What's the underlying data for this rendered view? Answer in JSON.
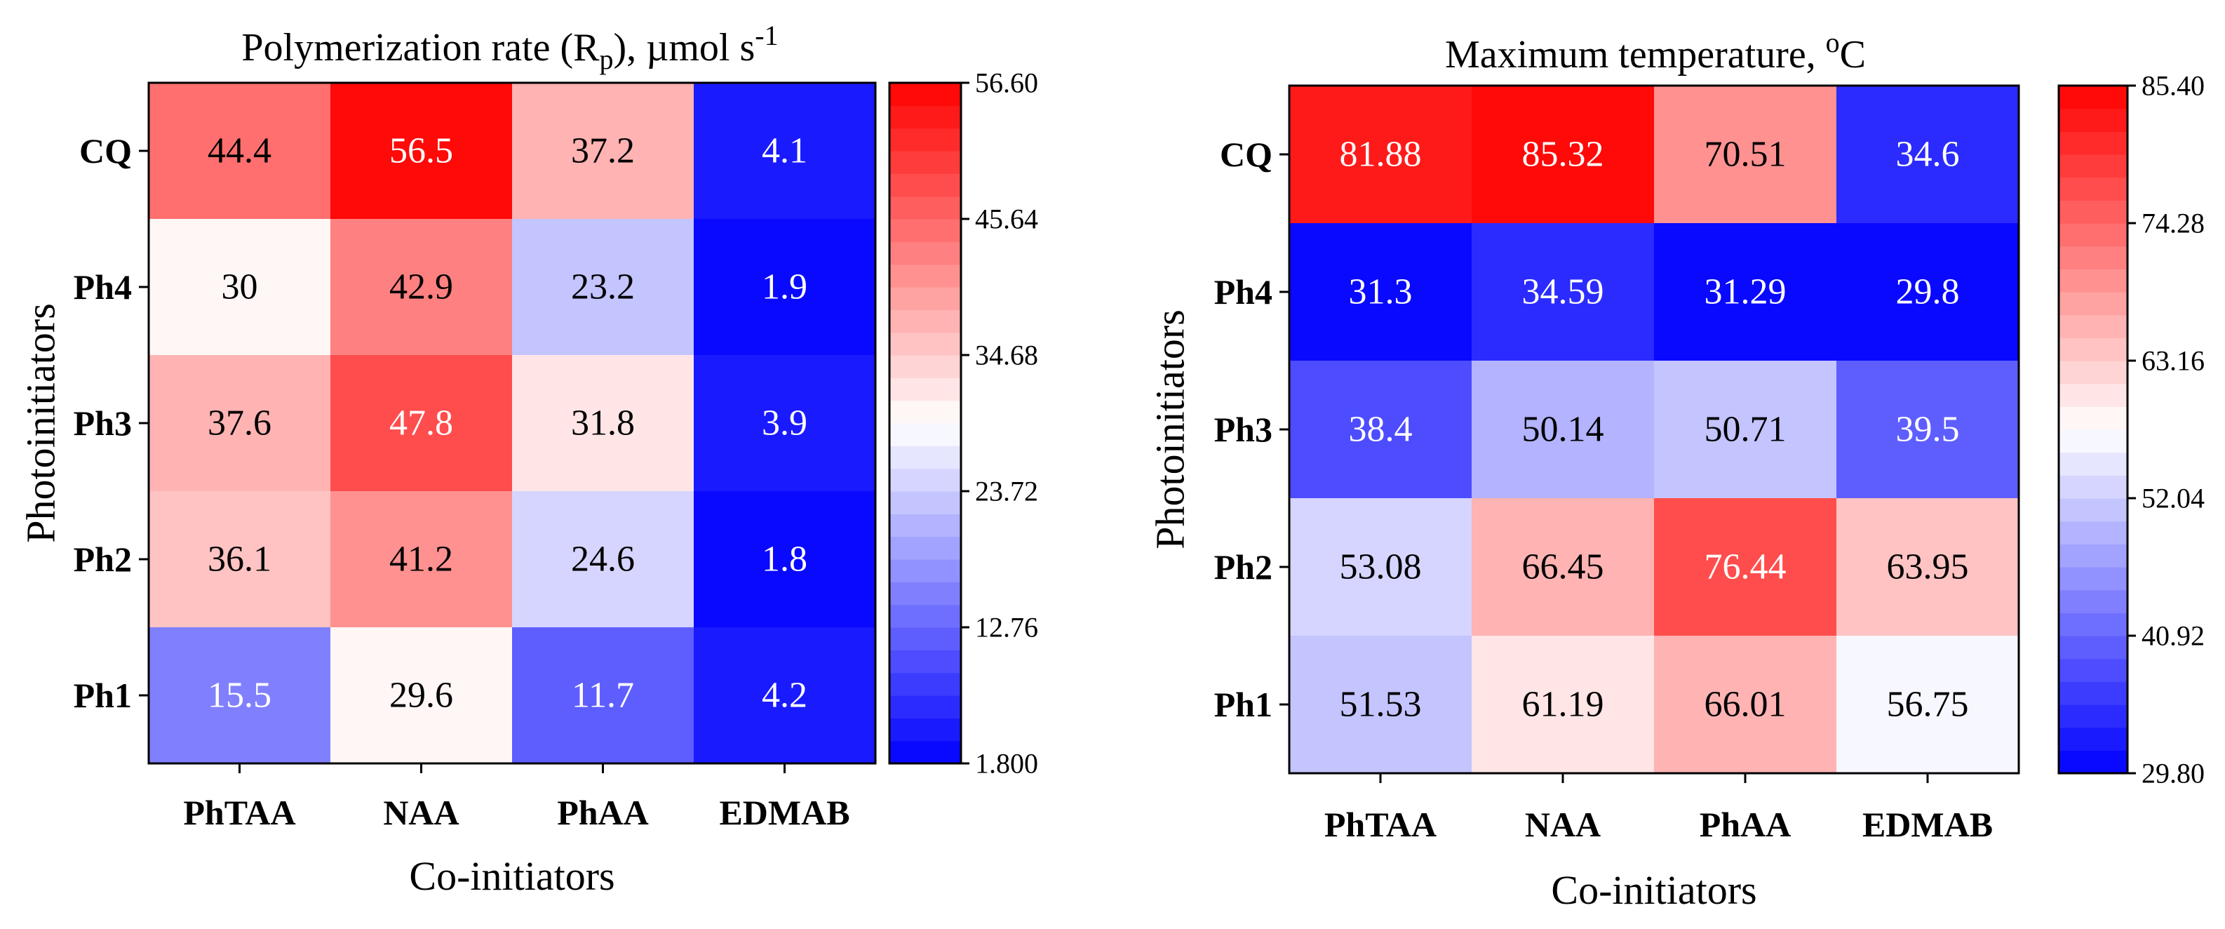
{
  "chart_data": [
    {
      "type": "heatmap",
      "title": {
        "main": "Polymerization rate (R",
        "sub": "p",
        "tail": "), µmol s",
        "sup": "-1"
      },
      "xlabel": "Co-initiators",
      "ylabel": "Photoinitiators",
      "x_categories": [
        "PhTAA",
        "NAA",
        "PhAA",
        "EDMAB"
      ],
      "y_categories": [
        "CQ",
        "Ph4",
        "Ph3",
        "Ph2",
        "Ph1"
      ],
      "values": [
        [
          44.4,
          56.5,
          37.2,
          4.1
        ],
        [
          30,
          42.9,
          23.2,
          1.9
        ],
        [
          37.6,
          47.8,
          31.8,
          3.9
        ],
        [
          36.1,
          41.2,
          24.6,
          1.8
        ],
        [
          15.5,
          29.6,
          11.7,
          4.2
        ]
      ],
      "value_labels": [
        [
          "44.4",
          "56.5",
          "37.2",
          "4.1"
        ],
        [
          "30",
          "42.9",
          "23.2",
          "1.9"
        ],
        [
          "37.6",
          "47.8",
          "31.8",
          "3.9"
        ],
        [
          "36.1",
          "41.2",
          "24.6",
          "1.8"
        ],
        [
          "15.5",
          "29.6",
          "11.7",
          "4.2"
        ]
      ],
      "colormap": "bwr",
      "color_levels": 30,
      "vmin": 1.8,
      "vmax": 56.6,
      "colorbar_ticks": [
        56.6,
        45.64,
        34.68,
        23.72,
        12.76,
        1.8
      ],
      "colorbar_tick_labels": [
        "56.60",
        "45.64",
        "34.68",
        "23.72",
        "12.76",
        "1.800"
      ]
    },
    {
      "type": "heatmap",
      "title": {
        "main": "Maximum temperature, ",
        "sup": "o",
        "tail": "C"
      },
      "xlabel": "Co-initiators",
      "ylabel": "Photoinitiators",
      "x_categories": [
        "PhTAA",
        "NAA",
        "PhAA",
        "EDMAB"
      ],
      "y_categories": [
        "CQ",
        "Ph4",
        "Ph3",
        "Ph2",
        "Ph1"
      ],
      "values": [
        [
          81.88,
          85.32,
          70.51,
          34.6
        ],
        [
          31.3,
          34.59,
          31.29,
          29.8
        ],
        [
          38.4,
          50.14,
          50.71,
          39.5
        ],
        [
          53.08,
          66.45,
          76.44,
          63.95
        ],
        [
          51.53,
          61.19,
          66.01,
          56.75
        ]
      ],
      "value_labels": [
        [
          "81.88",
          "85.32",
          "70.51",
          "34.6"
        ],
        [
          "31.3",
          "34.59",
          "31.29",
          "29.8"
        ],
        [
          "38.4",
          "50.14",
          "50.71",
          "39.5"
        ],
        [
          "53.08",
          "66.45",
          "76.44",
          "63.95"
        ],
        [
          "51.53",
          "61.19",
          "66.01",
          "56.75"
        ]
      ],
      "colormap": "bwr",
      "color_levels": 30,
      "vmin": 29.8,
      "vmax": 85.4,
      "colorbar_ticks": [
        85.4,
        74.28,
        63.16,
        52.04,
        40.92,
        29.8
      ],
      "colorbar_tick_labels": [
        "85.40",
        "74.28",
        "63.16",
        "52.04",
        "40.92",
        "29.80"
      ]
    }
  ]
}
